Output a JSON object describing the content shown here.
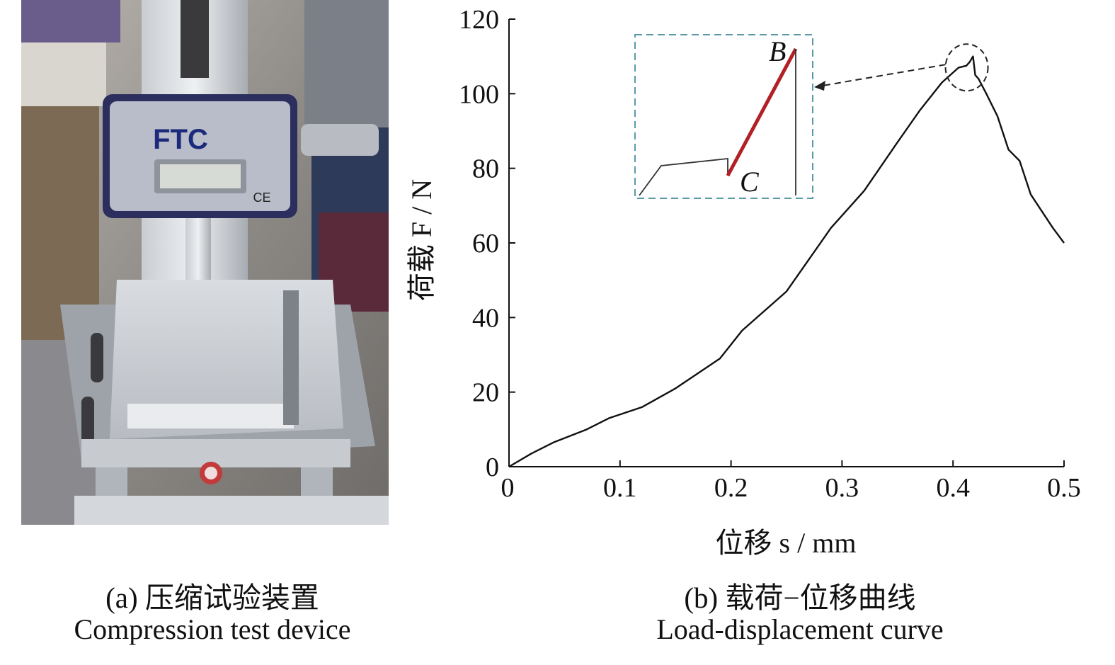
{
  "panel_a": {
    "device_brand": "FTC",
    "device_mark": "CE",
    "caption_cn": "(a) 压缩试验装置",
    "caption_en": "Compression test device"
  },
  "panel_b": {
    "caption_cn": "(b) 载荷−位移曲线",
    "caption_en": "Load-displacement curve"
  },
  "colors": {
    "curve": "#111111",
    "inset_highlight": "#b21f24",
    "inset_border": "#5a9aa6"
  },
  "chart_data": {
    "type": "line",
    "title": "",
    "xlabel": "位移 s / mm",
    "ylabel": "荷载 F / N",
    "xlim": [
      0,
      0.5
    ],
    "ylim": [
      0,
      120
    ],
    "x_ticks": [
      "0",
      "0.1",
      "0.2",
      "0.3",
      "0.4",
      "0.5"
    ],
    "y_ticks": [
      "0",
      "20",
      "40",
      "60",
      "80",
      "100",
      "120"
    ],
    "grid": false,
    "series": [
      {
        "x": [
          0,
          0.02,
          0.04,
          0.07,
          0.09,
          0.12,
          0.15,
          0.19,
          0.21,
          0.25,
          0.29,
          0.32,
          0.35,
          0.37,
          0.39,
          0.405,
          0.412,
          0.415,
          0.418,
          0.42,
          0.423,
          0.43,
          0.44,
          0.45,
          0.46,
          0.47,
          0.49,
          0.5
        ],
        "y": [
          0,
          3.5,
          6.5,
          10,
          13,
          16,
          21,
          29,
          36.5,
          47,
          64,
          74,
          87,
          95.5,
          103,
          107,
          107.5,
          108.5,
          110,
          105,
          104,
          100,
          94,
          85,
          82,
          73,
          64,
          60
        ]
      }
    ],
    "annotations": [
      {
        "type": "zoom-inset",
        "target_x": 0.42,
        "target_y": 108
      },
      {
        "type": "point-label",
        "label": "B"
      },
      {
        "type": "point-label",
        "label": "C"
      }
    ]
  }
}
